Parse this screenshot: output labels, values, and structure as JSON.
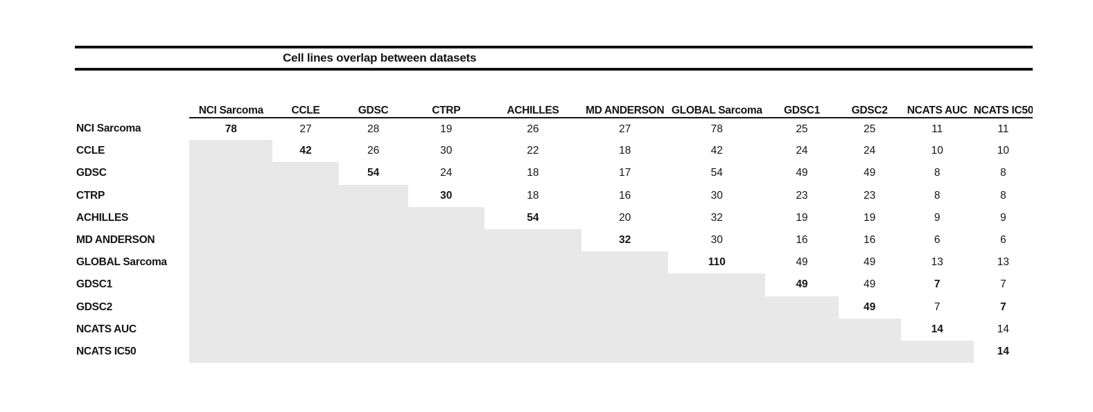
{
  "chart_data": {
    "type": "table",
    "title": "Cell lines overlap between datasets",
    "columns": [
      "NCI Sarcoma",
      "CCLE",
      "GDSC",
      "CTRP",
      "ACHILLES",
      "MD ANDERSON",
      "GLOBAL Sarcoma",
      "GDSC1",
      "GDSC2",
      "NCATS AUC",
      "NCATS IC50"
    ],
    "rows": [
      {
        "label": "NCI Sarcoma",
        "values": [
          "78",
          "27",
          "28",
          "19",
          "26",
          "27",
          "78",
          "25",
          "25",
          "11",
          "11"
        ]
      },
      {
        "label": "CCLE",
        "values": [
          null,
          "42",
          "26",
          "30",
          "22",
          "18",
          "42",
          "24",
          "24",
          "10",
          "10"
        ]
      },
      {
        "label": "GDSC",
        "values": [
          null,
          null,
          "54",
          "24",
          "18",
          "17",
          "54",
          "49",
          "49",
          "8",
          "8"
        ]
      },
      {
        "label": "CTRP",
        "values": [
          null,
          null,
          null,
          "30",
          "18",
          "16",
          "30",
          "23",
          "23",
          "8",
          "8"
        ]
      },
      {
        "label": "ACHILLES",
        "values": [
          null,
          null,
          null,
          null,
          "54",
          "20",
          "32",
          "19",
          "19",
          "9",
          "9"
        ]
      },
      {
        "label": "MD ANDERSON",
        "values": [
          null,
          null,
          null,
          null,
          null,
          "32",
          "30",
          "16",
          "16",
          "6",
          "6"
        ]
      },
      {
        "label": "GLOBAL Sarcoma",
        "values": [
          null,
          null,
          null,
          null,
          null,
          null,
          "110",
          "49",
          "49",
          "13",
          "13"
        ]
      },
      {
        "label": "GDSC1",
        "values": [
          null,
          null,
          null,
          null,
          null,
          null,
          null,
          "49",
          "49",
          "7",
          "7"
        ]
      },
      {
        "label": "GDSC2",
        "values": [
          null,
          null,
          null,
          null,
          null,
          null,
          null,
          null,
          "49",
          "7",
          "7"
        ]
      },
      {
        "label": "NCATS AUC",
        "values": [
          null,
          null,
          null,
          null,
          null,
          null,
          null,
          null,
          null,
          "14",
          "14"
        ]
      },
      {
        "label": "NCATS IC50",
        "values": [
          null,
          null,
          null,
          null,
          null,
          null,
          null,
          null,
          null,
          null,
          "14"
        ]
      }
    ],
    "bold_cells": [
      [
        0,
        0
      ],
      [
        1,
        1
      ],
      [
        2,
        2
      ],
      [
        3,
        3
      ],
      [
        4,
        4
      ],
      [
        5,
        5
      ],
      [
        6,
        6
      ],
      [
        7,
        7
      ],
      [
        8,
        8
      ],
      [
        9,
        9
      ],
      [
        10,
        10
      ],
      [
        7,
        9
      ],
      [
        8,
        10
      ]
    ],
    "shading": "lower triangle cells are filled light gray and contain no values",
    "shade_color": "#e8e8e8",
    "text_color": "#141414",
    "legend_position": "none",
    "grid": false
  }
}
